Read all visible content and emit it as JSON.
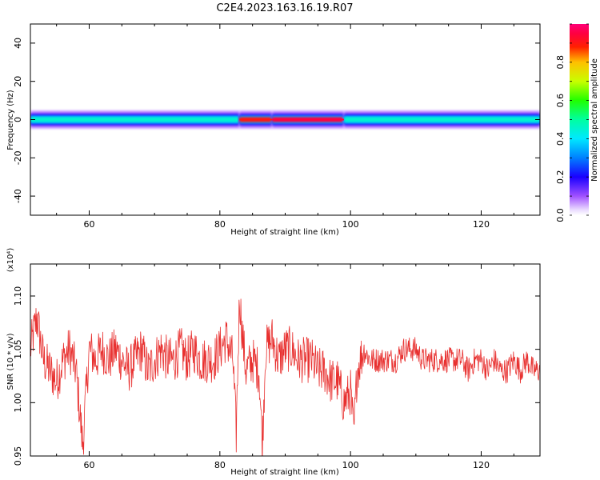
{
  "figure_title": "C2E4.2023.163.16.19.R07",
  "chart_data": [
    {
      "type": "heatmap",
      "title": "C2E4.2023.163.16.19.R07",
      "xlabel": "Height of straight line (km)",
      "ylabel": "Frequency (Hz)",
      "xlim": [
        51,
        129
      ],
      "ylim": [
        -50,
        50
      ],
      "xticks": [
        60,
        80,
        100,
        120
      ],
      "yticks": [
        -40,
        -20,
        0,
        20,
        40
      ],
      "xtick_labels": [
        "60",
        "80",
        "100",
        "120"
      ],
      "ytick_labels": [
        "-40",
        "-20",
        "0",
        "20",
        "40"
      ],
      "colorbar": {
        "label": "Normalized spectral amplitude",
        "range": [
          0,
          1
        ],
        "ticks": [
          0.0,
          0.2,
          0.4,
          0.6,
          0.8
        ],
        "tick_labels": [
          "0.0",
          "0.2",
          "0.4",
          "0.6",
          "0.8"
        ],
        "colormap": "rainbow (white-violet-blue-cyan-green-yellow-red-magenta)"
      },
      "band": {
        "center_frequency_hz": 0,
        "half_width_hz": 4,
        "segments": [
          {
            "x": [
              51,
              83
            ],
            "level": 0.45
          },
          {
            "x": [
              83,
              88
            ],
            "level": 0.9
          },
          {
            "x": [
              88,
              99
            ],
            "level": 0.95
          },
          {
            "x": [
              99,
              129
            ],
            "level": 0.45
          }
        ]
      },
      "grid": false
    },
    {
      "type": "line",
      "xlabel": "Height of straight line (km)",
      "ylabel": "SNR (10 * v/v)",
      "exponent_label": "(x10⁴)",
      "xlim": [
        51,
        129
      ],
      "ylim": [
        0.95,
        1.13
      ],
      "xticks": [
        60,
        80,
        100,
        120
      ],
      "yticks": [
        0.95,
        1.0,
        1.05,
        1.1
      ],
      "xtick_labels": [
        "60",
        "80",
        "100",
        "120"
      ],
      "ytick_labels": [
        "0.95",
        "1.00",
        "1.05",
        "1.10"
      ],
      "series": [
        {
          "color": "#e8302f",
          "x": [
            51,
            52,
            53,
            54,
            55,
            56,
            57,
            58,
            59,
            60,
            61,
            62,
            63,
            64,
            65,
            66,
            67,
            68,
            69,
            70,
            71,
            72,
            73,
            74,
            75,
            76,
            77,
            78,
            79,
            80,
            81,
            82,
            82.5,
            83,
            83.5,
            84,
            85,
            86,
            86.5,
            87,
            88,
            89,
            90,
            91,
            92,
            93,
            94,
            95,
            96,
            97,
            98,
            99,
            100,
            100.5,
            101,
            102,
            103,
            104,
            105,
            106,
            107,
            108,
            109,
            110,
            111,
            112,
            113,
            114,
            115,
            116,
            117,
            118,
            119,
            120,
            121,
            122,
            123,
            124,
            125,
            126,
            127,
            128,
            129
          ],
          "values": [
            1.05,
            1.08,
            1.04,
            1.03,
            1.02,
            1.04,
            1.05,
            1.03,
            0.96,
            1.05,
            1.04,
            1.05,
            1.04,
            1.05,
            1.04,
            1.03,
            1.04,
            1.05,
            1.03,
            1.04,
            1.05,
            1.04,
            1.04,
            1.05,
            1.04,
            1.05,
            1.04,
            1.04,
            1.04,
            1.05,
            1.06,
            1.04,
            0.97,
            1.1,
            1.06,
            1.03,
            1.04,
            1.03,
            0.96,
            1.05,
            1.06,
            1.04,
            1.05,
            1.05,
            1.04,
            1.04,
            1.04,
            1.03,
            1.03,
            1.02,
            1.02,
            1.0,
            1.01,
            0.97,
            1.03,
            1.05,
            1.04,
            1.04,
            1.04,
            1.04,
            1.04,
            1.05,
            1.05,
            1.05,
            1.04,
            1.04,
            1.04,
            1.04,
            1.04,
            1.04,
            1.04,
            1.03,
            1.04,
            1.04,
            1.03,
            1.04,
            1.03,
            1.03,
            1.04,
            1.03,
            1.04,
            1.03,
            1.03
          ]
        }
      ],
      "grid": false
    }
  ]
}
